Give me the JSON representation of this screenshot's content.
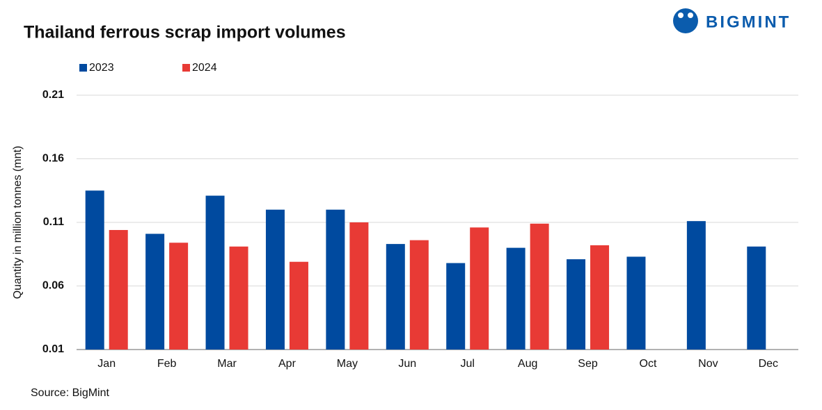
{
  "brand": "BIGMINT",
  "chart_data": {
    "type": "bar",
    "title": "Thailand ferrous scrap import volumes",
    "y_label": "Quantity in million tonnes (mnt)",
    "source": "Source: BigMint",
    "categories": [
      "Jan",
      "Feb",
      "Mar",
      "Apr",
      "May",
      "Jun",
      "Jul",
      "Aug",
      "Sep",
      "Oct",
      "Nov",
      "Dec"
    ],
    "series": [
      {
        "name": "2023",
        "color": "#004a9f",
        "values": [
          0.135,
          0.101,
          0.131,
          0.12,
          0.12,
          0.093,
          0.078,
          0.09,
          0.081,
          0.083,
          0.111,
          0.091
        ]
      },
      {
        "name": "2024",
        "color": "#e83a35",
        "values": [
          0.104,
          0.094,
          0.091,
          0.079,
          0.11,
          0.096,
          0.106,
          0.109,
          0.092,
          null,
          null,
          null
        ]
      }
    ],
    "ylim": [
      0.01,
      0.21
    ],
    "yticks": [
      0.01,
      0.06,
      0.11,
      0.16,
      0.21
    ],
    "grid": true,
    "legend": "top-left"
  }
}
